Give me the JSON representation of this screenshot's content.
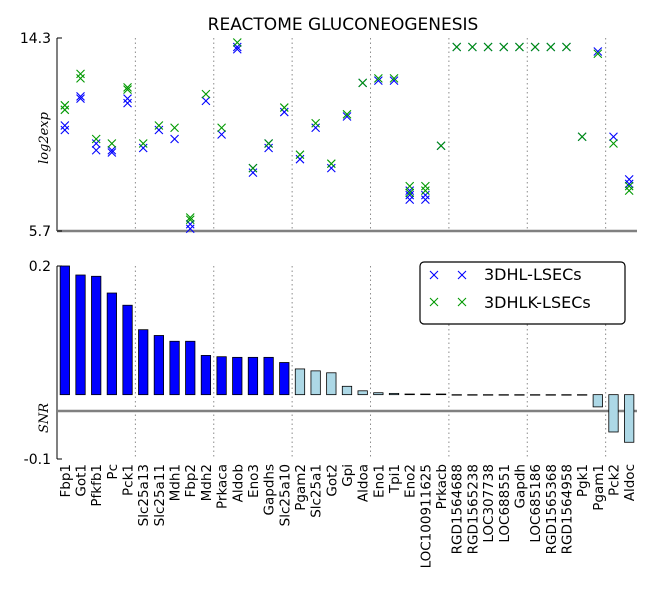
{
  "chart_data": [
    {
      "type": "scatter",
      "title": "REACTOME GLUCONEOGENESIS",
      "ylabel": "log2exp",
      "ylim": [
        5.7,
        14.3
      ],
      "yticks": [
        5.7,
        14.3
      ],
      "ytick_labels": [
        "5.7",
        "14.3"
      ],
      "categories": [
        "Fbp1",
        "Got1",
        "Pfkfb1",
        "Pc",
        "Pck1",
        "Slc25a13",
        "Slc25a11",
        "Mdh1",
        "Fbp2",
        "Mdh2",
        "Prkaca",
        "Aldob",
        "Eno3",
        "Gapdhs",
        "Slc25a10",
        "Pgam2",
        "Slc25a1",
        "Got2",
        "Gpi",
        "Aldoa",
        "Eno1",
        "Tpi1",
        "Eno2",
        "LOC100911625",
        "Prkacb",
        "RGD1564688",
        "RGD1565238",
        "LOC307738",
        "LOC688551",
        "Gapdh",
        "LOC685186",
        "RGD1565368",
        "RGD1564958",
        "Pgk1",
        "Pgam1",
        "Pck2",
        "Aldoc"
      ],
      "group_separators_after": [
        4,
        9,
        14,
        19,
        24,
        29,
        34
      ],
      "grid": false,
      "series": [
        {
          "name": "3DHL-LSECs",
          "color": "#0000ff",
          "points": [
            [
              [
                0,
                10.2
              ],
              [
                0,
                10.4
              ]
            ],
            [
              [
                1,
                11.6
              ],
              [
                1,
                11.7
              ]
            ],
            [
              [
                2,
                9.3
              ],
              [
                2,
                9.6
              ]
            ],
            [
              [
                3,
                9.2
              ],
              [
                3,
                9.3
              ]
            ],
            [
              [
                4,
                11.4
              ],
              [
                4,
                11.6
              ]
            ],
            [
              [
                5,
                9.4
              ]
            ],
            [
              [
                6,
                10.2
              ]
            ],
            [
              [
                7,
                9.8
              ]
            ],
            [
              [
                8,
                5.8
              ],
              [
                8,
                6.0
              ]
            ],
            [
              [
                9,
                11.5
              ]
            ],
            [
              [
                10,
                10.0
              ]
            ],
            [
              [
                11,
                13.8
              ],
              [
                11,
                13.9
              ]
            ],
            [
              [
                12,
                8.3
              ],
              [
                12,
                8.5
              ]
            ],
            [
              [
                13,
                9.4
              ],
              [
                13,
                9.6
              ]
            ],
            [
              [
                14,
                11.0
              ]
            ],
            [
              [
                15,
                8.9
              ]
            ],
            [
              [
                16,
                10.3
              ]
            ],
            [
              [
                17,
                8.5
              ]
            ],
            [
              [
                18,
                10.8
              ]
            ],
            [
              [
                19,
                12.3
              ]
            ],
            [
              [
                20,
                12.4
              ]
            ],
            [
              [
                21,
                12.4
              ]
            ],
            [
              [
                22,
                7.1
              ],
              [
                22,
                7.3
              ],
              [
                22,
                7.5
              ]
            ],
            [
              [
                23,
                7.1
              ],
              [
                23,
                7.3
              ]
            ],
            [
              [
                24,
                9.5
              ]
            ],
            [
              [
                25,
                13.9
              ]
            ],
            [
              [
                26,
                13.9
              ]
            ],
            [
              [
                27,
                13.9
              ]
            ],
            [
              [
                28,
                13.9
              ]
            ],
            [
              [
                29,
                13.9
              ]
            ],
            [
              [
                30,
                13.9
              ]
            ],
            [
              [
                31,
                13.9
              ]
            ],
            [
              [
                32,
                13.9
              ]
            ],
            [
              [
                33,
                9.9
              ]
            ],
            [
              [
                34,
                13.7
              ]
            ],
            [
              [
                35,
                9.9
              ]
            ],
            [
              [
                36,
                7.8
              ],
              [
                36,
                8.0
              ]
            ]
          ]
        },
        {
          "name": "3DHLK-LSECs",
          "color": "#009900",
          "points": [
            [
              [
                0,
                11.1
              ],
              [
                0,
                11.3
              ]
            ],
            [
              [
                1,
                12.5
              ],
              [
                1,
                12.7
              ]
            ],
            [
              [
                2,
                9.8
              ]
            ],
            [
              [
                3,
                9.6
              ]
            ],
            [
              [
                4,
                12.0
              ],
              [
                4,
                12.1
              ]
            ],
            [
              [
                5,
                9.6
              ]
            ],
            [
              [
                6,
                10.4
              ]
            ],
            [
              [
                7,
                10.3
              ]
            ],
            [
              [
                8,
                6.2
              ],
              [
                8,
                6.3
              ]
            ],
            [
              [
                9,
                11.8
              ]
            ],
            [
              [
                10,
                10.3
              ]
            ],
            [
              [
                11,
                14.1
              ]
            ],
            [
              [
                12,
                8.5
              ]
            ],
            [
              [
                13,
                9.6
              ]
            ],
            [
              [
                14,
                11.2
              ]
            ],
            [
              [
                15,
                9.1
              ]
            ],
            [
              [
                16,
                10.5
              ]
            ],
            [
              [
                17,
                8.7
              ]
            ],
            [
              [
                18,
                10.9
              ]
            ],
            [
              [
                19,
                12.3
              ]
            ],
            [
              [
                20,
                12.5
              ]
            ],
            [
              [
                21,
                12.5
              ]
            ],
            [
              [
                22,
                7.4
              ],
              [
                22,
                7.7
              ]
            ],
            [
              [
                23,
                7.5
              ],
              [
                23,
                7.7
              ]
            ],
            [
              [
                24,
                9.5
              ]
            ],
            [
              [
                25,
                13.9
              ]
            ],
            [
              [
                26,
                13.9
              ]
            ],
            [
              [
                27,
                13.9
              ]
            ],
            [
              [
                28,
                13.9
              ]
            ],
            [
              [
                29,
                13.9
              ]
            ],
            [
              [
                30,
                13.9
              ]
            ],
            [
              [
                31,
                13.9
              ]
            ],
            [
              [
                32,
                13.9
              ]
            ],
            [
              [
                33,
                9.9
              ]
            ],
            [
              [
                34,
                13.6
              ]
            ],
            [
              [
                35,
                9.6
              ]
            ],
            [
              [
                36,
                7.5
              ],
              [
                36,
                7.7
              ]
            ]
          ]
        }
      ]
    },
    {
      "type": "bar",
      "ylabel": "SNR",
      "ylim": [
        -0.1,
        0.2
      ],
      "yticks": [
        -0.1,
        0.2
      ],
      "ytick_labels": [
        "-0.1",
        "0.2"
      ],
      "categories": [
        "Fbp1",
        "Got1",
        "Pfkfb1",
        "Pc",
        "Pck1",
        "Slc25a13",
        "Slc25a11",
        "Mdh1",
        "Fbp2",
        "Mdh2",
        "Prkaca",
        "Aldob",
        "Eno3",
        "Gapdhs",
        "Slc25a10",
        "Pgam2",
        "Slc25a1",
        "Got2",
        "Gpi",
        "Aldoa",
        "Eno1",
        "Tpi1",
        "Eno2",
        "LOC100911625",
        "Prkacb",
        "RGD1564688",
        "RGD1565238",
        "LOC307738",
        "LOC688551",
        "Gapdh",
        "LOC685186",
        "RGD1565368",
        "RGD1564958",
        "Pgk1",
        "Pgam1",
        "Pck2",
        "Aldoc"
      ],
      "values": [
        0.2,
        0.186,
        0.184,
        0.158,
        0.139,
        0.101,
        0.092,
        0.083,
        0.083,
        0.061,
        0.059,
        0.058,
        0.058,
        0.058,
        0.05,
        0.04,
        0.037,
        0.034,
        0.013,
        0.006,
        0.003,
        0.002,
        0.001,
        0.001,
        0.001,
        0.0,
        0.0,
        0.0,
        0.0,
        0.0,
        0.0,
        0.0,
        0.0,
        0.0,
        -0.019,
        -0.058,
        -0.074
      ],
      "bar_colors": {
        "positive_significant": "#0000ff",
        "other": "#add8e6"
      },
      "significant_count": 15,
      "legend": {
        "placement": "top-right",
        "entries": [
          {
            "label": "3DHL-LSECs",
            "color": "#0000ff"
          },
          {
            "label": "3DHLK-LSECs",
            "color": "#009900"
          }
        ]
      }
    }
  ]
}
